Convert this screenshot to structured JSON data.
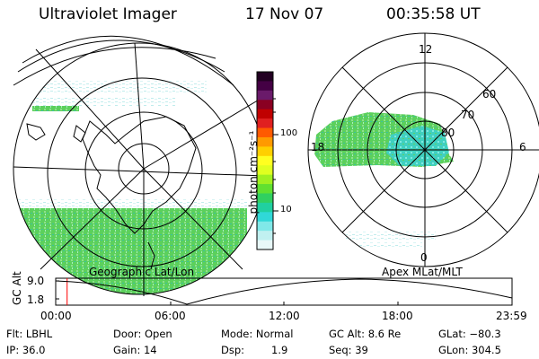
{
  "header": {
    "title": "Ultraviolet Imager",
    "date": "17 Nov 07",
    "time": "00:35:58 UT"
  },
  "left_panel": {
    "caption": "Geographic Lat/Lon"
  },
  "right_panel": {
    "caption": "Apex MLat/MLT",
    "mlt_labels": {
      "top": "12",
      "bottom": "0",
      "left": "18",
      "right": "6"
    },
    "lat_labels": [
      "60",
      "70",
      "80"
    ]
  },
  "colorbar": {
    "unit_label": "photon cm⁻²s⁻¹",
    "ticks": [
      "100",
      "10"
    ],
    "colors": [
      "#220022",
      "#440044",
      "#6a1a6a",
      "#8a0022",
      "#c00000",
      "#e02020",
      "#ff5a00",
      "#ff9a00",
      "#ffd000",
      "#ffff20",
      "#e0ff20",
      "#a0f020",
      "#60e030",
      "#30d060",
      "#20d0a0",
      "#30d8d8",
      "#80e8e8",
      "#c0f0f0",
      "#e8f8f8"
    ]
  },
  "altitude_plot": {
    "ylabel": "GC Alt",
    "yticks": [
      "9.0",
      "1.8"
    ],
    "xticks": [
      "00:00",
      "06:00",
      "12:00",
      "18:00",
      "23:59"
    ],
    "current_time_fraction": 0.025
  },
  "info": {
    "filter": "Flt: LBHL",
    "ip": "IP: 36.0",
    "door": "Door: Open",
    "gain": "Gain: 14",
    "mode": "Mode: Normal",
    "dsp_label": "Dsp:",
    "dsp_value": "1.9",
    "gc_alt": "GC Alt: 8.6 Re",
    "seq": "Seq: 39",
    "glat": "GLat: −80.3",
    "glon": "GLon: 304.5"
  },
  "colors": {
    "aurora_green": "#60d060",
    "aurora_cyan": "#40d0c0",
    "aurora_light": "#c8f0e8",
    "marker_red": "#ff0000"
  }
}
